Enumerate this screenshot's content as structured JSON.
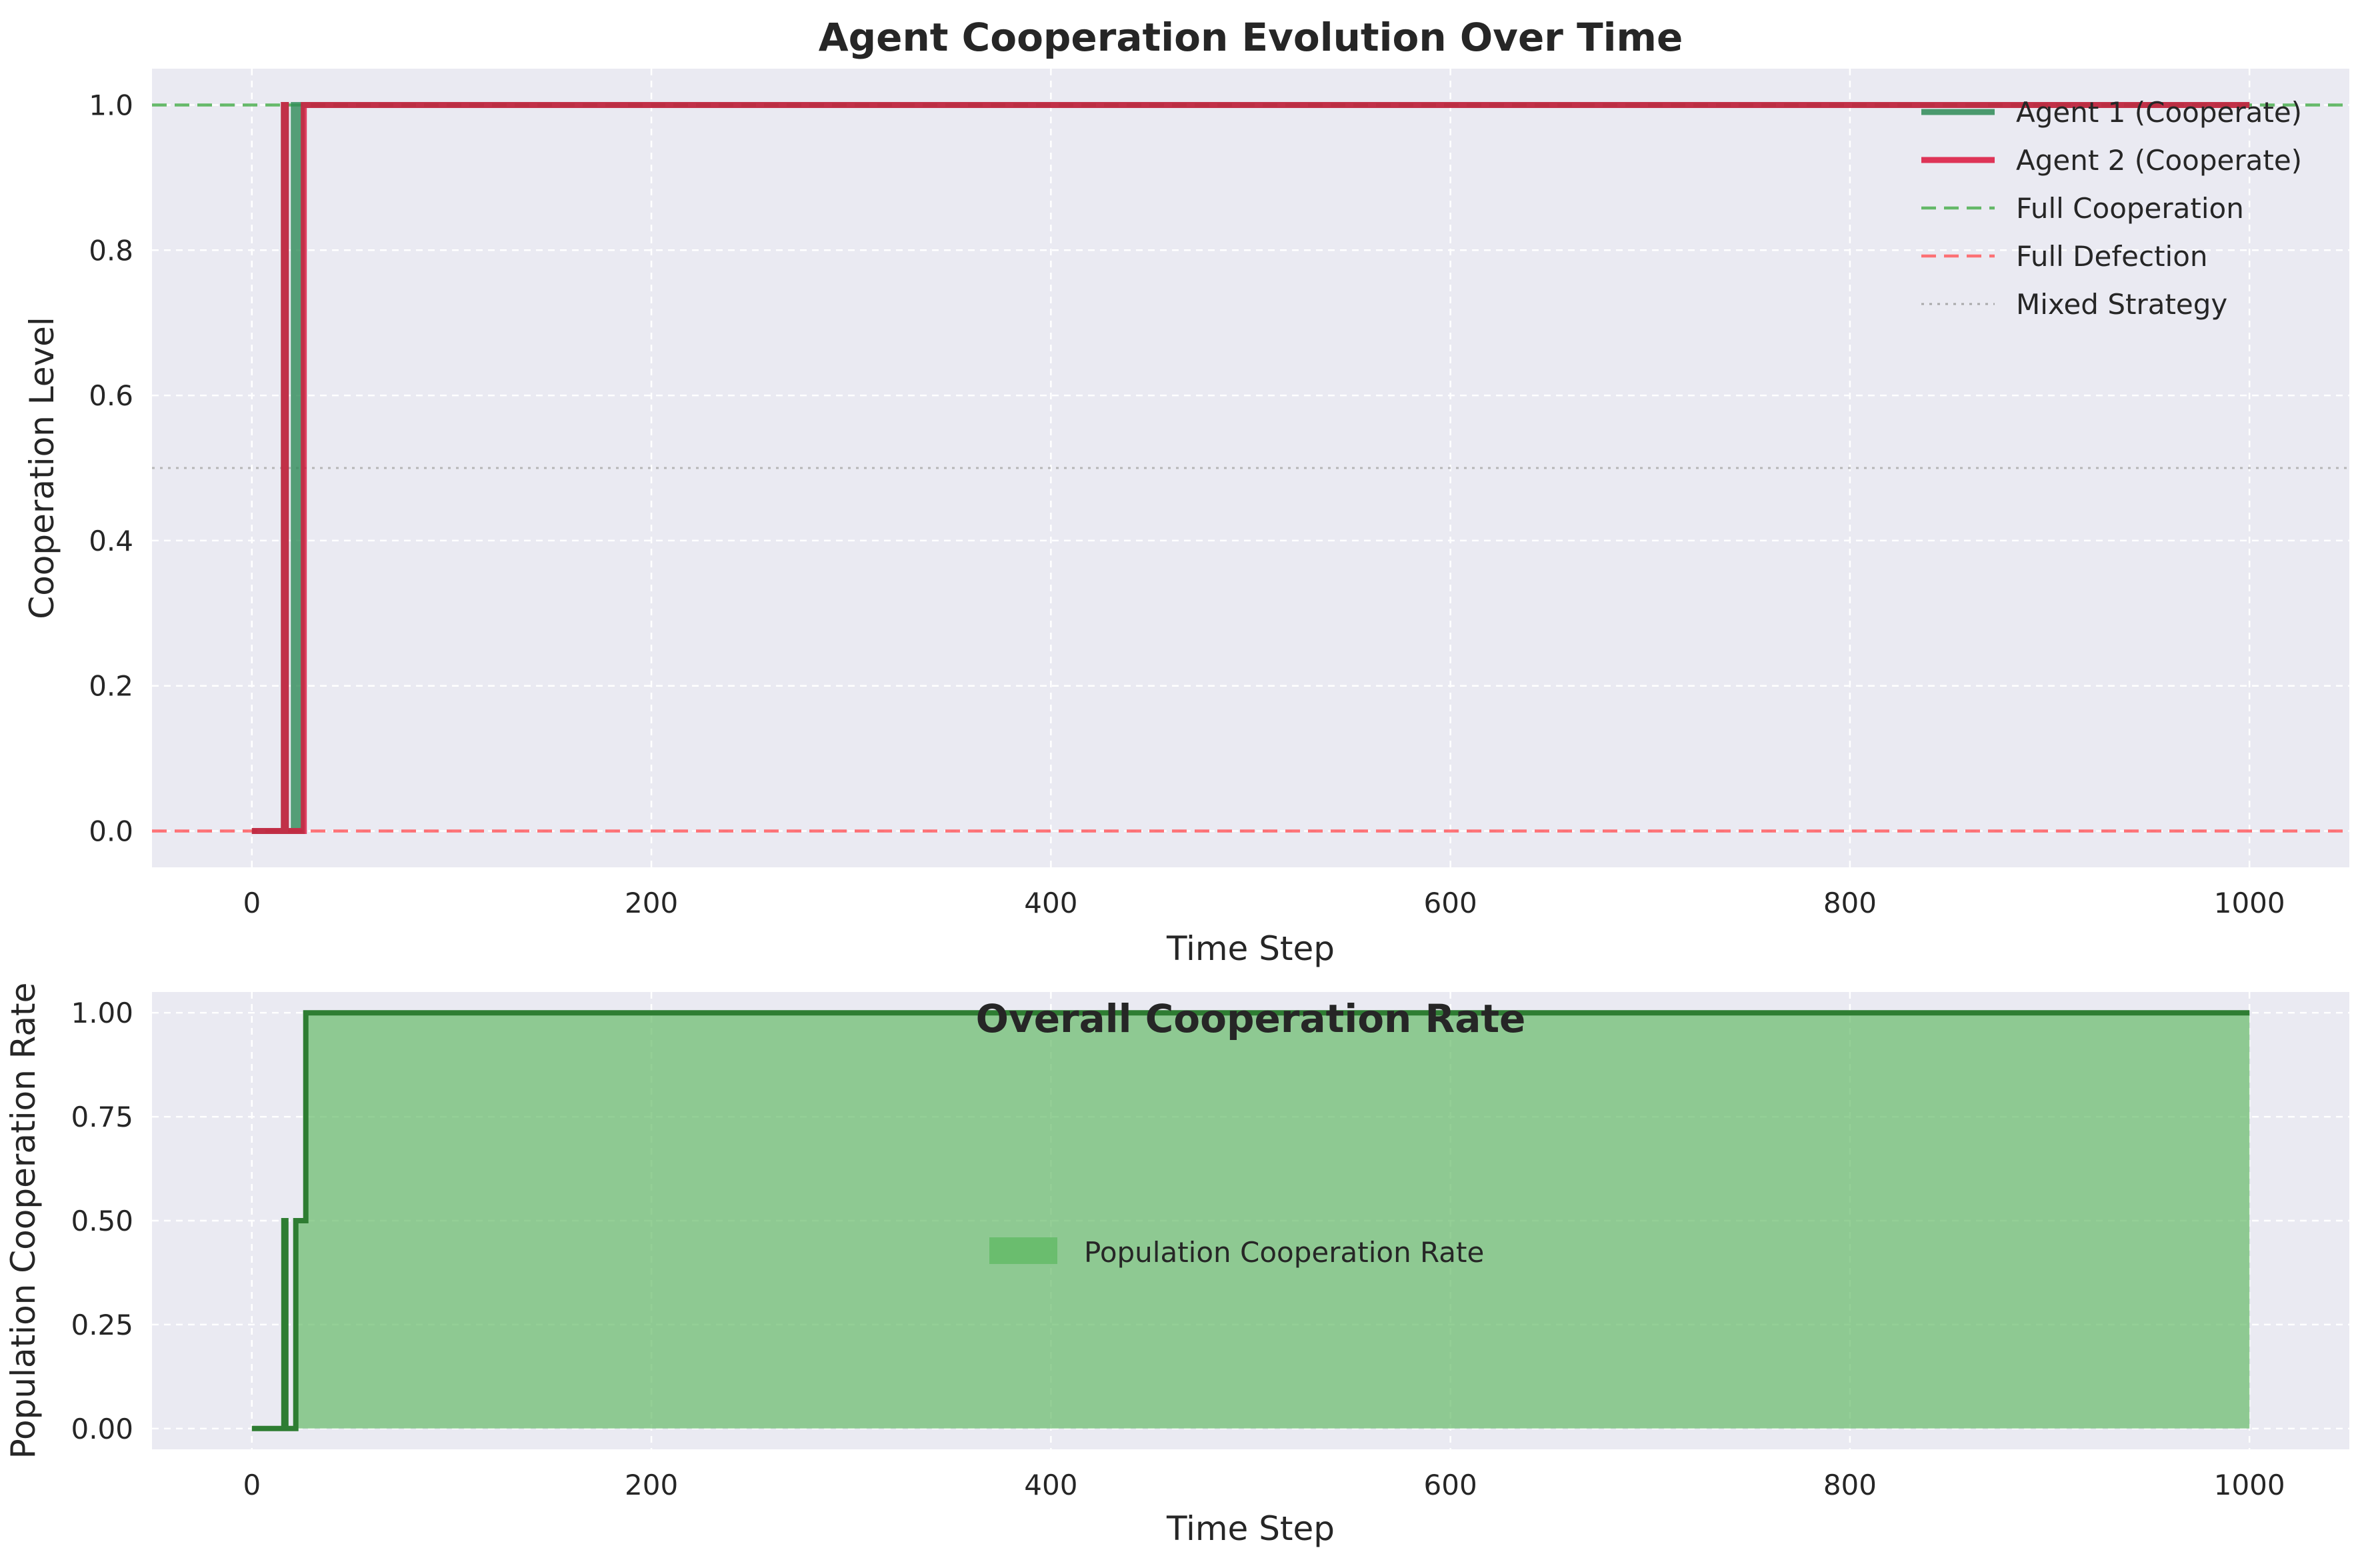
{
  "chart_data": [
    {
      "type": "line",
      "title": "Agent Cooperation Evolution Over Time",
      "xlabel": "Time Step",
      "ylabel": "Cooperation Level",
      "xlim": [
        -50,
        1050
      ],
      "ylim": [
        -0.05,
        1.05
      ],
      "xticks": [
        0,
        200,
        400,
        600,
        800,
        1000
      ],
      "yticks": [
        0.0,
        0.2,
        0.4,
        0.6,
        0.8,
        1.0
      ],
      "ytick_labels": [
        "0.0",
        "0.2",
        "0.4",
        "0.6",
        "0.8",
        "1.0"
      ],
      "grid": true,
      "legend_position": "top-right",
      "series": [
        {
          "name": "Agent 1 (Cooperate)",
          "color": "#2e8b57",
          "style": "solid",
          "x": [
            0,
            16,
            16,
            17,
            17,
            21,
            21,
            22,
            22,
            25,
            25,
            1000
          ],
          "y": [
            0,
            0,
            1,
            1,
            0,
            0,
            1,
            1,
            0,
            0,
            1,
            1
          ]
        },
        {
          "name": "Agent 2 (Cooperate)",
          "color": "#dc143c",
          "style": "solid",
          "x": [
            0,
            16,
            16,
            17,
            17,
            26,
            26,
            1000
          ],
          "y": [
            0,
            0,
            1,
            1,
            0,
            0,
            1,
            1
          ]
        }
      ],
      "reference_lines": [
        {
          "name": "Full Cooperation",
          "y": 1.0,
          "color": "#4caf50",
          "style": "dashed"
        },
        {
          "name": "Full Defection",
          "y": 0.0,
          "color": "#ff5a5f",
          "style": "dashed"
        },
        {
          "name": "Mixed Strategy",
          "y": 0.5,
          "color": "#9e9e9e",
          "style": "dotted"
        }
      ]
    },
    {
      "type": "area",
      "title": "Overall Cooperation Rate",
      "xlabel": "Time Step",
      "ylabel": "Population Cooperation Rate",
      "xlim": [
        -50,
        1050
      ],
      "ylim": [
        -0.05,
        1.05
      ],
      "xticks": [
        0,
        200,
        400,
        600,
        800,
        1000
      ],
      "yticks": [
        0.0,
        0.25,
        0.5,
        0.75,
        1.0
      ],
      "ytick_labels": [
        "0.00",
        "0.25",
        "0.50",
        "0.75",
        "1.00"
      ],
      "grid": true,
      "legend_position": "center",
      "series": [
        {
          "name": "Population Cooperation Rate",
          "fill_color": "#66bb6a",
          "line_color": "#2e7d32",
          "x": [
            0,
            16,
            16,
            17,
            17,
            22,
            22,
            23,
            23,
            26,
            26,
            27,
            27,
            1000
          ],
          "y": [
            0,
            0,
            0.5,
            0.5,
            0,
            0,
            0.5,
            0.5,
            0.5,
            0.5,
            0.5,
            0.5,
            1,
            1
          ]
        }
      ]
    }
  ]
}
